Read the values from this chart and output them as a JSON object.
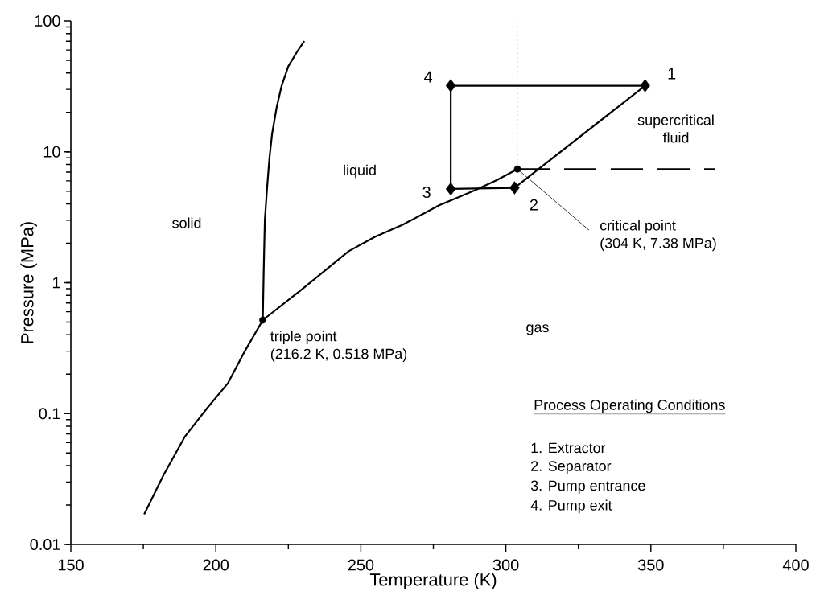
{
  "chart_data": {
    "type": "line",
    "xlabel": "Temperature (K)",
    "ylabel": "Pressure (MPa)",
    "log": "y",
    "xlim": [
      150,
      400
    ],
    "ylim": [
      0.01,
      100
    ],
    "xticks": [
      150,
      200,
      250,
      300,
      350,
      400
    ],
    "yticks": [
      0.01,
      0.1,
      1,
      10,
      100
    ],
    "line_style": "solid",
    "marker": "none",
    "series": [
      {
        "color": "#000000",
        "x": [
          175.3,
          182,
          189.4,
          197,
          204.2,
          210,
          216.2
        ],
        "values": [
          0.017,
          0.034,
          0.067,
          0.11,
          0.171,
          0.3,
          0.518
        ]
      },
      {
        "color": "#000000",
        "x": [
          216.2,
          216.5,
          216.9,
          217.7,
          218.5,
          219.4,
          221,
          222.7,
          225,
          228,
          230.5
        ],
        "values": [
          0.518,
          1.2,
          3,
          5.4,
          9,
          13.7,
          22,
          32,
          45,
          58,
          70
        ]
      },
      {
        "color": "#000000",
        "x": [
          216.2,
          230,
          245.8,
          255,
          264.4,
          277,
          289.4,
          297,
          304
        ],
        "values": [
          0.518,
          0.9,
          1.74,
          2.25,
          2.77,
          3.9,
          5.09,
          6.1,
          7.38
        ]
      },
      {
        "color": "#000000",
        "x": [
          281,
          348
        ],
        "values": [
          32,
          32
        ]
      },
      {
        "color": "#000000",
        "x": [
          303,
          348
        ],
        "values": [
          5.3,
          32
        ]
      },
      {
        "color": "#000000",
        "x": [
          281,
          303
        ],
        "values": [
          5.2,
          5.3
        ]
      },
      {
        "color": "#000000",
        "x": [
          281,
          281
        ],
        "values": [
          5.2,
          32
        ]
      },
      {
        "type": "scatter",
        "color": "#000000",
        "marker": "diamond",
        "x": [
          348,
          303,
          281,
          281
        ],
        "values": [
          32,
          5.3,
          5.2,
          32
        ]
      },
      {
        "type": "scatter",
        "color": "#000000",
        "marker": "circle",
        "x": [
          216.2,
          304
        ],
        "values": [
          0.518,
          7.38
        ]
      },
      {
        "type": "line",
        "color": "#000000",
        "line_style": "dashed",
        "x": [
          304,
          372
        ],
        "values": [
          7.38,
          7.38
        ]
      },
      {
        "type": "line",
        "color": "#bbbbbb",
        "line_style": "dotted",
        "x": [
          304,
          304
        ],
        "values": [
          7.38,
          100
        ]
      }
    ],
    "annotations": [
      "solid",
      "liquid",
      "gas",
      "supercritical fluid",
      {
        "text": "triple point",
        "x": 216.2,
        "y": 0.518
      },
      {
        "text": "(216.2 K, 0.518 MPa)",
        "x": 216.2,
        "y": 0.518
      },
      {
        "text": "critical point",
        "x": 304,
        "y": 7.38
      },
      {
        "text": "(304 K, 7.38 MPa)",
        "x": 304,
        "y": 7.38
      },
      {
        "text": "1",
        "x": 348,
        "y": 32
      },
      {
        "text": "2",
        "x": 303,
        "y": 5.3
      },
      {
        "text": "3",
        "x": 281,
        "y": 5.2
      },
      {
        "text": "4",
        "x": 281,
        "y": 32
      },
      "Process Operating Conditions",
      "1. Extractor",
      "2. Separator",
      "3. Pump entrance",
      "4. Pump exit"
    ]
  }
}
